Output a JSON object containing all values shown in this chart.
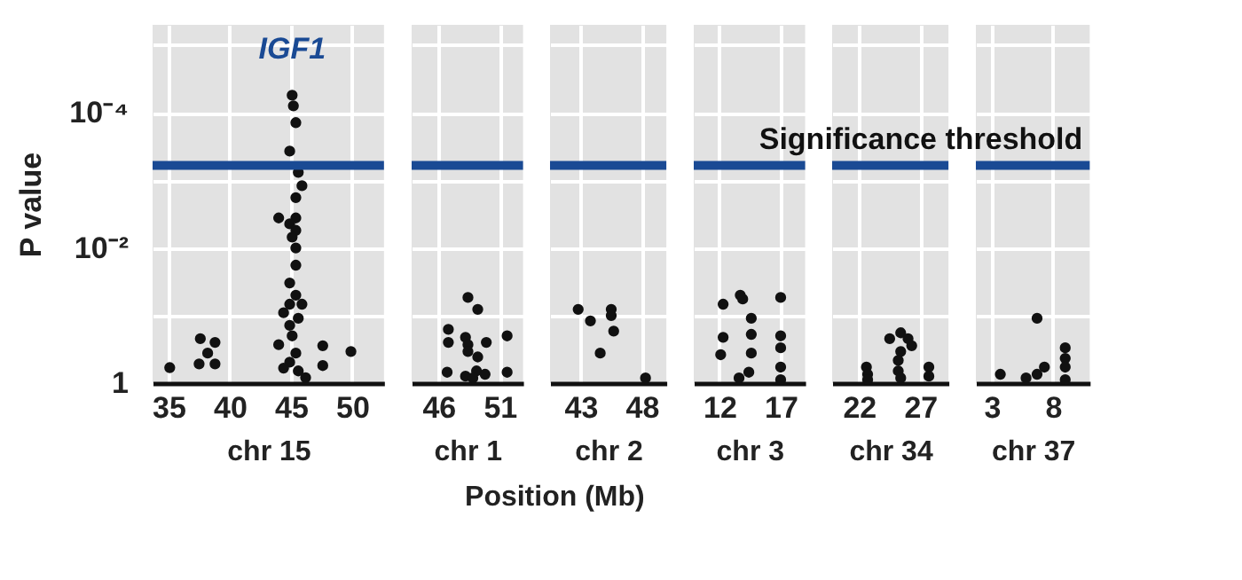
{
  "chart_data": [
    {
      "type": "scatter",
      "xlabel": "chr 15",
      "ylabel": "P value",
      "marker": "circle",
      "log": "y",
      "grid": true,
      "xlim": [
        33.7,
        52.6
      ],
      "xticks": [
        35,
        40,
        45,
        50
      ],
      "ylim": [
        1,
        5e-06
      ],
      "yticks": [
        1,
        {
          "value": 0.1,
          "label": null
        },
        {
          "value": 0.01,
          "label": "10⁻²"
        },
        {
          "value": 0.001,
          "label": null
        },
        {
          "value": 0.0001,
          "label": "10⁻⁴"
        },
        {
          "value": 1e-05,
          "label": null
        }
      ],
      "ref_lines": [
        {
          "axis": "y",
          "value": 0.0006,
          "color": "#1a4a94"
        }
      ],
      "annotations": [
        "IGF1",
        "Position (Mb)"
      ],
      "series": [
        {
          "color": "#111111",
          "x": [
            35.1,
            37.6,
            38.8,
            38.2,
            37.5,
            38.8,
            47.6,
            47.6,
            49.9,
            45.1,
            45.2,
            45.4,
            44.9,
            45.6,
            45.9,
            45.4,
            45.4,
            44.0,
            44.9,
            45.4,
            45.1,
            45.4,
            45.4,
            44.9,
            45.4,
            44.9,
            45.9,
            44.4,
            45.6,
            44.9,
            44.0,
            45.1,
            45.4,
            44.9,
            45.6,
            46.2,
            44.4
          ],
          "values": [
            0.59,
            0.22,
            0.25,
            0.36,
            0.52,
            0.52,
            0.28,
            0.55,
            0.34,
            5.5e-05,
            7.9e-05,
            0.00014,
            0.00037,
            0.00076,
            0.0012,
            0.0018,
            0.0036,
            0.0036,
            0.0044,
            0.0055,
            0.0069,
            0.01,
            0.018,
            0.033,
            0.05,
            0.068,
            0.068,
            0.091,
            0.11,
            0.14,
            0.27,
            0.2,
            0.36,
            0.49,
            0.66,
            0.83,
            0.6
          ]
        }
      ]
    },
    {
      "type": "scatter",
      "xlabel": "chr 1",
      "marker": "circle",
      "log": "y",
      "grid": true,
      "tick_labels": "x",
      "xlim": [
        43.8,
        52.9
      ],
      "xticks": [
        46,
        51
      ],
      "ylim": [
        1,
        5e-06
      ],
      "yticks": [
        {
          "value": 0.1,
          "label": null
        },
        {
          "value": 0.01,
          "label": null
        },
        {
          "value": 0.001,
          "label": null
        },
        {
          "value": 0.0001,
          "label": null
        },
        {
          "value": 1e-05,
          "label": null
        }
      ],
      "ref_lines": [
        {
          "axis": "y",
          "value": 0.0006,
          "color": "#1a4a94"
        }
      ],
      "series": [
        {
          "color": "#111111",
          "x": [
            48.4,
            49.2,
            46.8,
            46.8,
            48.2,
            48.4,
            48.4,
            49.9,
            51.6,
            49.2,
            46.7,
            48.2,
            49.1,
            49.8,
            51.6,
            48.8
          ],
          "values": [
            0.054,
            0.081,
            0.16,
            0.25,
            0.21,
            0.27,
            0.34,
            0.25,
            0.2,
            0.41,
            0.69,
            0.79,
            0.66,
            0.74,
            0.69,
            0.84
          ]
        }
      ]
    },
    {
      "type": "scatter",
      "xlabel": "chr 2",
      "marker": "circle",
      "log": "y",
      "grid": true,
      "tick_labels": "x",
      "xlim": [
        40.5,
        50
      ],
      "xticks": [
        43,
        48
      ],
      "ylim": [
        1,
        5e-06
      ],
      "yticks": [
        {
          "value": 0.1,
          "label": null
        },
        {
          "value": 0.01,
          "label": null
        },
        {
          "value": 0.001,
          "label": null
        },
        {
          "value": 0.0001,
          "label": null
        },
        {
          "value": 1e-05,
          "label": null
        }
      ],
      "ref_lines": [
        {
          "axis": "y",
          "value": 0.0006,
          "color": "#1a4a94"
        }
      ],
      "series": [
        {
          "color": "#111111",
          "x": [
            42.8,
            43.8,
            45.5,
            45.5,
            45.7,
            44.6,
            48.3
          ],
          "values": [
            0.081,
            0.12,
            0.081,
            0.1,
            0.17,
            0.36,
            0.84
          ]
        }
      ]
    },
    {
      "type": "scatter",
      "xlabel": "chr 3",
      "marker": "circle",
      "log": "y",
      "grid": true,
      "tick_labels": "x",
      "xlim": [
        9.9,
        19
      ],
      "xticks": [
        12,
        17
      ],
      "ylim": [
        1,
        5e-06
      ],
      "yticks": [
        {
          "value": 0.1,
          "label": null
        },
        {
          "value": 0.01,
          "label": null
        },
        {
          "value": 0.001,
          "label": null
        },
        {
          "value": 0.0001,
          "label": null
        },
        {
          "value": 1e-05,
          "label": null
        }
      ],
      "ref_lines": [
        {
          "axis": "y",
          "value": 0.0006,
          "color": "#1a4a94"
        }
      ],
      "series": [
        {
          "color": "#111111",
          "x": [
            12.3,
            13.7,
            13.9,
            14.6,
            14.6,
            14.6,
            14.4,
            12.3,
            12.1,
            13.6,
            17.0,
            17.0,
            17.0,
            17.0,
            17.0
          ],
          "values": [
            0.068,
            0.05,
            0.057,
            0.11,
            0.19,
            0.36,
            0.69,
            0.21,
            0.38,
            0.84,
            0.054,
            0.2,
            0.3,
            0.58,
            0.89
          ]
        }
      ]
    },
    {
      "type": "scatter",
      "xlabel": "chr 34",
      "marker": "circle",
      "log": "y",
      "grid": true,
      "tick_labels": "x",
      "xlim": [
        19.8,
        29.3
      ],
      "xticks": [
        22,
        27
      ],
      "ylim": [
        1,
        5e-06
      ],
      "yticks": [
        {
          "value": 0.1,
          "label": null
        },
        {
          "value": 0.01,
          "label": null
        },
        {
          "value": 0.001,
          "label": null
        },
        {
          "value": 0.0001,
          "label": null
        },
        {
          "value": 1e-05,
          "label": null
        }
      ],
      "ref_lines": [
        {
          "axis": "y",
          "value": 0.0006,
          "color": "#1a4a94"
        }
      ],
      "series": [
        {
          "color": "#111111",
          "x": [
            22.6,
            22.7,
            22.7,
            24.5,
            25.4,
            26.0,
            26.3,
            25.4,
            25.2,
            25.2,
            25.4,
            27.7,
            27.7
          ],
          "values": [
            0.58,
            0.74,
            0.89,
            0.22,
            0.18,
            0.22,
            0.28,
            0.34,
            0.46,
            0.66,
            0.84,
            0.58,
            0.79
          ]
        }
      ]
    },
    {
      "type": "scatter",
      "xlabel": "chr 37",
      "marker": "circle",
      "log": "y",
      "grid": true,
      "tick_labels": "x",
      "xlim": [
        1.7,
        11
      ],
      "xticks": [
        3,
        8
      ],
      "ylim": [
        1,
        5e-06
      ],
      "yticks": [
        {
          "value": 0.1,
          "label": null
        },
        {
          "value": 0.01,
          "label": null
        },
        {
          "value": 0.001,
          "label": null
        },
        {
          "value": 0.0001,
          "label": null
        },
        {
          "value": 1e-05,
          "label": null
        }
      ],
      "ref_lines": [
        {
          "axis": "y",
          "value": 0.0006,
          "label": "Significance threshold",
          "color": "#1a4a94"
        }
      ],
      "series": [
        {
          "color": "#111111",
          "x": [
            3.7,
            5.8,
            6.7,
            6.7,
            7.3,
            9.0,
            9.0,
            9.0,
            9.0
          ],
          "values": [
            0.74,
            0.84,
            0.11,
            0.74,
            0.58,
            0.3,
            0.43,
            0.58,
            0.89
          ]
        }
      ]
    }
  ]
}
